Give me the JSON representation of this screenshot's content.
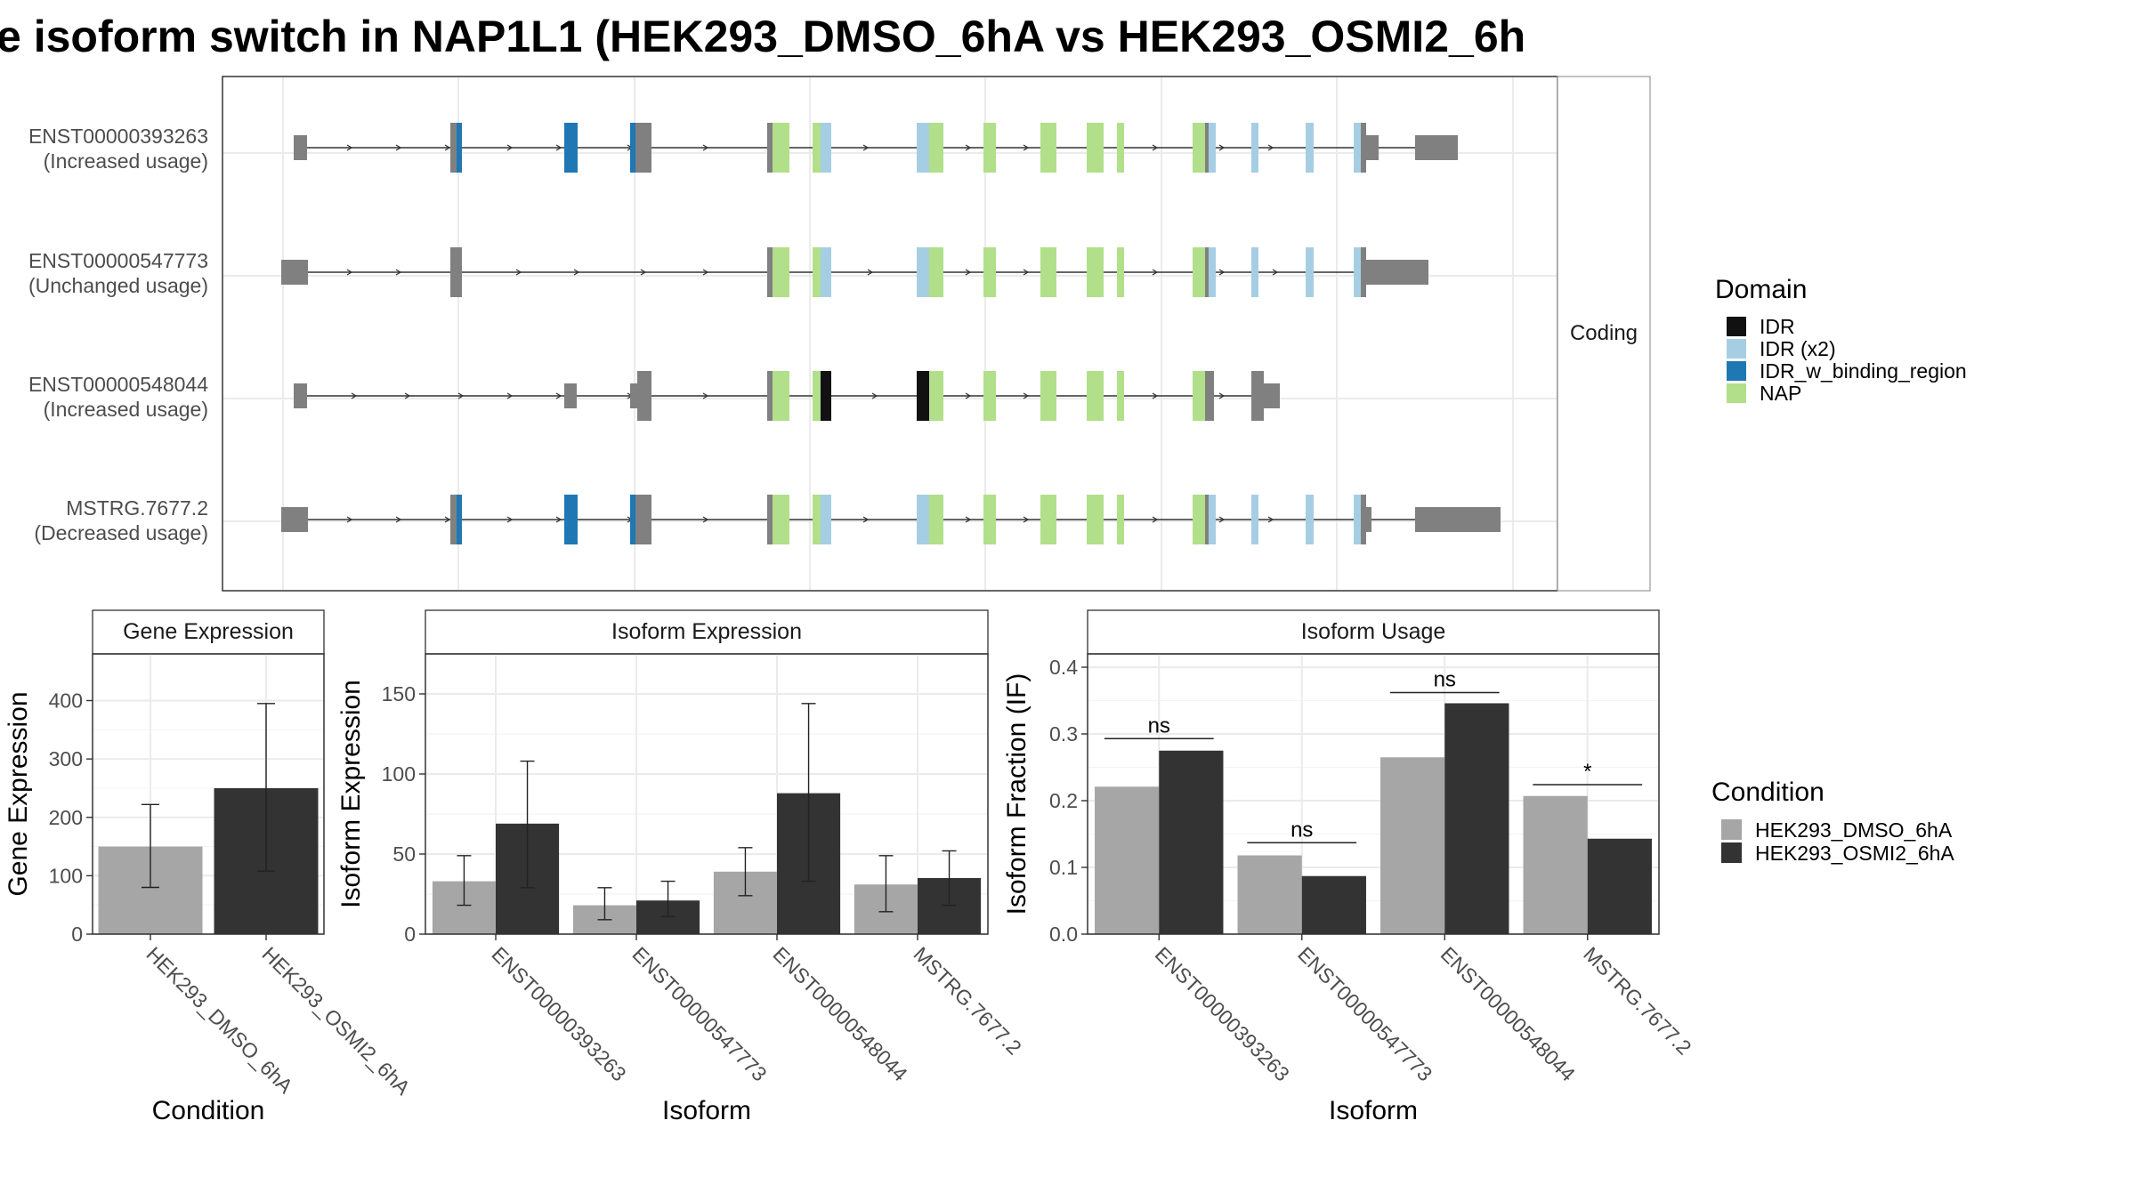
{
  "title": "e isoform switch in NAP1L1 (HEK293_DMSO_6hA vs HEK293_OSMI2_6h",
  "structure": {
    "strip_label": "Coding",
    "transcripts": [
      {
        "id": "ENST00000393263",
        "usage": "(Increased usage)"
      },
      {
        "id": "ENST00000547773",
        "usage": "(Unchanged usage)"
      },
      {
        "id": "ENST00000548044",
        "usage": "(Increased usage)"
      },
      {
        "id": "MSTRG.7677.2",
        "usage": "(Decreased usage)"
      }
    ],
    "domain_legend": {
      "title": "Domain",
      "items": [
        {
          "label": "IDR",
          "color": "#111111"
        },
        {
          "label": "IDR (x2)",
          "color": "#a6cee3"
        },
        {
          "label": "IDR_w_binding_region",
          "color": "#1f78b4"
        },
        {
          "label": "NAP",
          "color": "#b2df8a"
        }
      ]
    },
    "utr_color": "#808080"
  },
  "condition_legend": {
    "title": "Condition",
    "items": [
      {
        "label": "HEK293_DMSO_6hA",
        "color": "#a6a6a6"
      },
      {
        "label": "HEK293_OSMI2_6hA",
        "color": "#333333"
      }
    ]
  },
  "chart_data": [
    {
      "type": "bar",
      "title": "Gene Expression",
      "xlabel": "Condition",
      "ylabel": "Gene Expression",
      "categories": [
        "HEK293_DMSO_6hA",
        "HEK293_OSMI2_6hA"
      ],
      "values": [
        150,
        250
      ],
      "error_low": [
        80,
        108
      ],
      "error_high": [
        222,
        395
      ],
      "ylim": [
        0,
        480
      ],
      "yticks": [
        0,
        100,
        200,
        300,
        400
      ]
    },
    {
      "type": "bar",
      "title": "Isoform Expression",
      "xlabel": "Isoform",
      "ylabel": "Isoform Expression",
      "categories": [
        "ENST00000393263",
        "ENST00000547773",
        "ENST00000548044",
        "MSTRG.7677.2"
      ],
      "series": [
        {
          "name": "HEK293_DMSO_6hA",
          "values": [
            33,
            18,
            39,
            31
          ],
          "error_low": [
            18,
            9,
            24,
            14
          ],
          "error_high": [
            49,
            29,
            54,
            49
          ]
        },
        {
          "name": "HEK293_OSMI2_6hA",
          "values": [
            69,
            21,
            88,
            35
          ],
          "error_low": [
            29,
            11,
            33,
            18
          ],
          "error_high": [
            108,
            33,
            144,
            52
          ]
        }
      ],
      "ylim": [
        0,
        175
      ],
      "yticks": [
        0,
        50,
        100,
        150
      ]
    },
    {
      "type": "bar",
      "title": "Isoform Usage",
      "xlabel": "Isoform",
      "ylabel": "Isoform Fraction (IF)",
      "categories": [
        "ENST00000393263",
        "ENST00000547773",
        "ENST00000548044",
        "MSTRG.7677.2"
      ],
      "series": [
        {
          "name": "HEK293_DMSO_6hA",
          "values": [
            0.221,
            0.118,
            0.265,
            0.207
          ]
        },
        {
          "name": "HEK293_OSMI2_6hA",
          "values": [
            0.275,
            0.087,
            0.346,
            0.143
          ]
        }
      ],
      "significance": [
        "ns",
        "ns",
        "ns",
        "*"
      ],
      "significance_y": [
        0.293,
        0.137,
        0.362,
        0.224
      ],
      "ylim": [
        0,
        0.42
      ],
      "yticks": [
        0.0,
        0.1,
        0.2,
        0.3,
        0.4
      ],
      "ytick_labels": [
        "0.0",
        "0.1",
        "0.2",
        "0.3",
        "0.4"
      ]
    }
  ]
}
